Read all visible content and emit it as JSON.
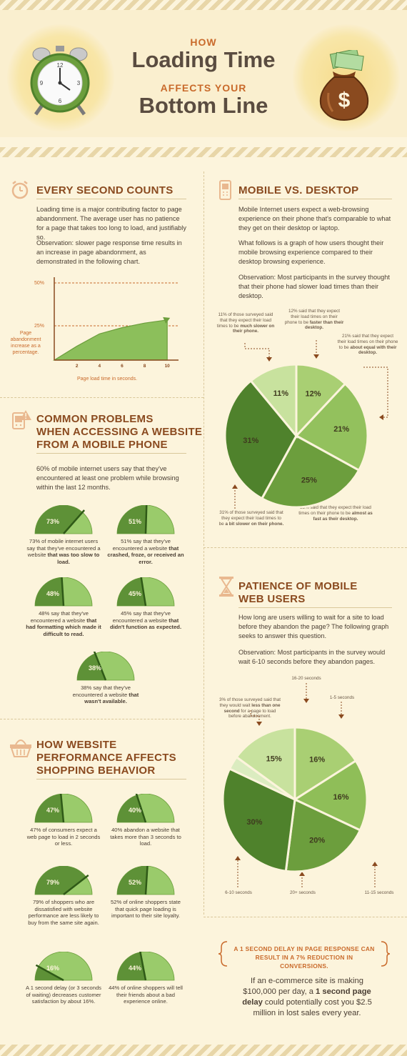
{
  "header": {
    "line1": "HOW",
    "line2": "Loading Time",
    "line3": "AFFECTS YOUR",
    "line4": "Bottom Line"
  },
  "every_second": {
    "heading": "EVERY SECOND COUNTS",
    "p1": "Loading time is a major contributing factor to page abandonment. The average user has no patience for a page that takes too long to load, and justifiably so.",
    "p2": "Observation: slower page response time results in an increase in page abandonment, as demonstrated in the following chart."
  },
  "mobile_desktop": {
    "heading": "MOBILE VS. DESKTOP",
    "p1": "Mobile Internet users expect a web-browsing experience on their phone that's comparable to what they get on their desktop or laptop.",
    "p2": "What follows is a graph of how users thought their mobile browsing experience compared to their desktop browsing experience.",
    "p3": "Observation: Most participants in the survey thought that their phone had slower load times than their desktop.",
    "notes": {
      "n11a": "11% of those surveyed said that they expect their load times to be ",
      "n11b": "much slower on their phone.",
      "n12a": "12% said that they expect their load times on their phone to be ",
      "n12b": "faster than their desktop.",
      "n21a": "21% said that they expect their load times on their phone to be ",
      "n21b": "about equal with their desktop.",
      "n31a": "31% of those surveyed said that they expect their load times to be ",
      "n31b": "a bit slower on their phone.",
      "n25a": "25% said that they expect their load times on their phone to be ",
      "n25b": "almost as fast as their desktop."
    }
  },
  "common_problems": {
    "heading1": "COMMON PROBLEMS",
    "heading2": "WHEN ACCESSING A WEBSITE",
    "heading3": "FROM A MOBILE PHONE",
    "p1": "60% of mobile internet users say that they've encountered at least one problem while browsing within the last 12 months.",
    "gauges": [
      {
        "pct": 73,
        "label": "73%",
        "c1": "73% of mobile internet users say that they've encountered a website ",
        "c2": "that was too slow to load."
      },
      {
        "pct": 51,
        "label": "51%",
        "c1": "51% say that they've encountered a website ",
        "c2": "that crashed, froze, or received an error."
      },
      {
        "pct": 48,
        "label": "48%",
        "c1": "48% say that they've encountered a website ",
        "c2": "that had formatting which made it difficult to read."
      },
      {
        "pct": 45,
        "label": "45%",
        "c1": "45% say that they've encountered a website ",
        "c2": "that didn't function as expected."
      },
      {
        "pct": 38,
        "label": "38%",
        "c1": "38% say that they've encountered a website ",
        "c2": "that wasn't available."
      }
    ]
  },
  "patience": {
    "heading1": "PATIENCE OF MOBILE",
    "heading2": "WEB USERS",
    "p1": "How long are users willing to wait for a site to load before they abandon the page? The following graph seeks to answer this question.",
    "p2": "Observation: Most participants in the survey would wait 6-10 seconds before they abandon pages.",
    "note3a": "3% of those surveyed said that they would wait ",
    "note3b": "less than one second",
    "note3c": " for a page to load before abandonment.",
    "l_16_20": "16-20 seconds",
    "l_1_5": "1-5 seconds",
    "l_6_10": "6-10 seconds",
    "l_20p": "20+ seconds",
    "l_11_15": "11-15 seconds"
  },
  "shopping": {
    "heading1": "HOW WEBSITE",
    "heading2": "PERFORMANCE AFFECTS",
    "heading3": "SHOPPING BEHAVIOR",
    "gauges": [
      {
        "pct": 47,
        "label": "47%",
        "c1": "47% of consumers expect a web page to load in 2 seconds or less.",
        "c2": ""
      },
      {
        "pct": 40,
        "label": "40%",
        "c1": "40% abandon a website that takes more than 3 seconds to load.",
        "c2": ""
      },
      {
        "pct": 79,
        "label": "79%",
        "c1": "79% of shoppers who are dissatisfied with website performance are less likely to buy from the same site again.",
        "c2": ""
      },
      {
        "pct": 52,
        "label": "52%",
        "c1": "52% of online shoppers state that quick page loading is important to their site loyalty.",
        "c2": ""
      },
      {
        "pct": 16,
        "label": "16%",
        "c1": "A 1 second delay (or 3 seconds of waiting) decreases customer satisfaction by about 16%.",
        "c2": ""
      },
      {
        "pct": 44,
        "label": "44%",
        "c1": "44% of online shoppers will tell their friends about a bad experience online.",
        "c2": ""
      }
    ]
  },
  "bottom": {
    "quote": "A 1 SECOND DELAY IN PAGE RESPONSE CAN RESULT IN A 7% REDUCTION IN CONVERSIONS.",
    "t1": "If an e-commerce site is making $100,000 per day, a ",
    "t2": "1 second page delay",
    "t3": " could potentially cost you $2.5 million in lost sales every year."
  },
  "chart_data": [
    {
      "type": "area",
      "title": "",
      "xlabel": "Page load time in seconds.",
      "ylabel": "Page abandonment increase as a percentage.",
      "x_ticks": [
        "2",
        "4",
        "6",
        "8",
        "10"
      ],
      "y_ticks": [
        "25%",
        "50%"
      ],
      "x": [
        0,
        2,
        4,
        6,
        8,
        10
      ],
      "values": [
        0,
        9,
        17,
        21,
        24,
        26
      ],
      "xlim": [
        0,
        11
      ],
      "ylim": [
        0,
        50
      ]
    },
    {
      "type": "pie",
      "title": "MOBILE VS. DESKTOP",
      "slices": [
        {
          "label": "12%",
          "value": 12,
          "color": "#a9cf73"
        },
        {
          "label": "21%",
          "value": 21,
          "color": "#93c15d"
        },
        {
          "label": "25%",
          "value": 25,
          "color": "#6c9e3d"
        },
        {
          "label": "31%",
          "value": 31,
          "color": "#4f822c"
        },
        {
          "label": "11%",
          "value": 11,
          "color": "#c8e29e"
        }
      ]
    },
    {
      "type": "pie",
      "title": "PATIENCE OF MOBILE WEB USERS",
      "slices": [
        {
          "label": "16%",
          "value": 16,
          "color": "#a9cf73",
          "group": "1-5 seconds"
        },
        {
          "label": "16%",
          "value": 16,
          "color": "#8fbe58",
          "group": "11-15 seconds"
        },
        {
          "label": "20%",
          "value": 20,
          "color": "#6c9e3d",
          "group": "20+ seconds"
        },
        {
          "label": "30%",
          "value": 30,
          "color": "#4f822c",
          "group": "6-10 seconds"
        },
        {
          "label": "",
          "value": 3,
          "color": "#dbecc0",
          "group": "less than one second"
        },
        {
          "label": "15%",
          "value": 15,
          "color": "#c8e29e",
          "group": "16-20 seconds"
        }
      ]
    }
  ]
}
